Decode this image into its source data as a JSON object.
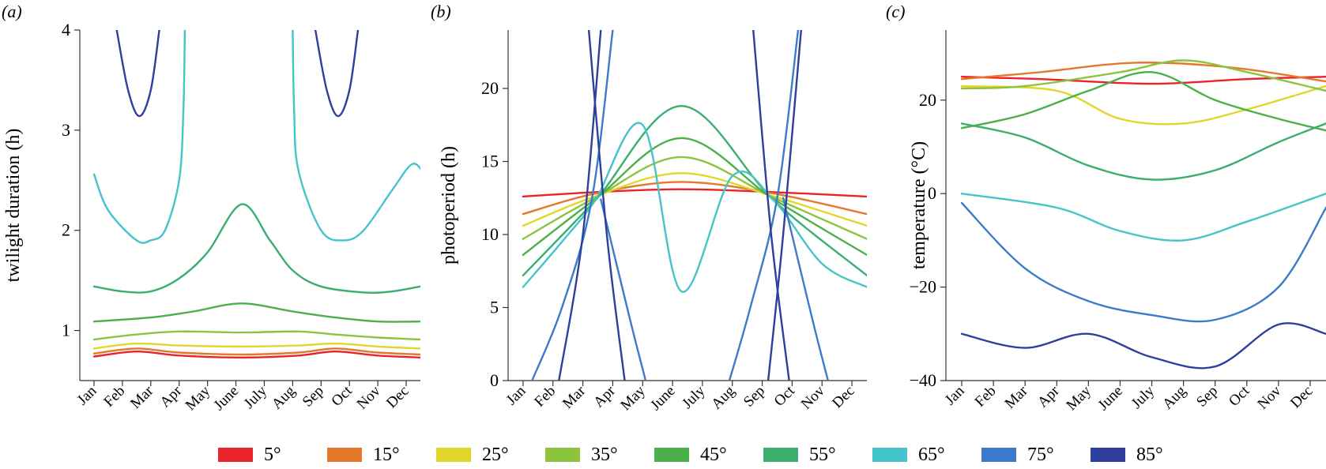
{
  "months": [
    "Jan",
    "Feb",
    "Mar",
    "Apr",
    "May",
    "June",
    "July",
    "Aug",
    "Sep",
    "Oct",
    "Nov",
    "Dec"
  ],
  "legend": {
    "labels": [
      "5°",
      "15°",
      "25°",
      "35°",
      "45°",
      "55°",
      "65°",
      "75°",
      "85°"
    ],
    "colors": [
      "#e8232a",
      "#e5782b",
      "#e3d62a",
      "#8cc43f",
      "#4bb04a",
      "#3aae6e",
      "#45c4c9",
      "#3a7cc9",
      "#2f3f9c"
    ]
  },
  "chart_data": [
    {
      "panel": "(a)",
      "type": "line",
      "title": "",
      "xlabel": "",
      "ylabel": "twilight duration (h)",
      "ylim": [
        0.5,
        4
      ],
      "yticks": [
        1,
        2,
        3,
        4
      ],
      "x_unit": "month index (0 = Jan)",
      "series": [
        {
          "name": "5°",
          "segments": [
            [
              [
                0,
                0.74
              ],
              [
                1.5,
                0.79
              ],
              [
                3,
                0.75
              ],
              [
                5.2,
                0.73
              ],
              [
                7.2,
                0.75
              ],
              [
                8.5,
                0.79
              ],
              [
                10,
                0.75
              ],
              [
                11.5,
                0.73
              ]
            ]
          ]
        },
        {
          "name": "15°",
          "segments": [
            [
              [
                0,
                0.77
              ],
              [
                1.5,
                0.82
              ],
              [
                3,
                0.78
              ],
              [
                5.2,
                0.76
              ],
              [
                7.2,
                0.78
              ],
              [
                8.5,
                0.82
              ],
              [
                10,
                0.78
              ],
              [
                11.5,
                0.76
              ]
            ]
          ]
        },
        {
          "name": "25°",
          "segments": [
            [
              [
                0,
                0.82
              ],
              [
                1.5,
                0.87
              ],
              [
                3,
                0.85
              ],
              [
                5.2,
                0.84
              ],
              [
                7.2,
                0.85
              ],
              [
                8.5,
                0.87
              ],
              [
                10,
                0.84
              ],
              [
                11.5,
                0.82
              ]
            ]
          ]
        },
        {
          "name": "35°",
          "segments": [
            [
              [
                0,
                0.91
              ],
              [
                1.5,
                0.96
              ],
              [
                3,
                0.99
              ],
              [
                5.2,
                0.98
              ],
              [
                7.2,
                0.99
              ],
              [
                8.5,
                0.96
              ],
              [
                10,
                0.93
              ],
              [
                11.5,
                0.91
              ]
            ]
          ]
        },
        {
          "name": "45°",
          "segments": [
            [
              [
                0,
                1.09
              ],
              [
                2,
                1.13
              ],
              [
                3.5,
                1.19
              ],
              [
                5.2,
                1.27
              ],
              [
                7,
                1.19
              ],
              [
                8.5,
                1.13
              ],
              [
                10,
                1.09
              ],
              [
                11.5,
                1.09
              ]
            ]
          ]
        },
        {
          "name": "55°",
          "segments": [
            [
              [
                0,
                1.44
              ],
              [
                1,
                1.39
              ],
              [
                2,
                1.39
              ],
              [
                3,
                1.52
              ],
              [
                4,
                1.78
              ],
              [
                5.2,
                2.26
              ],
              [
                6.2,
                1.9
              ],
              [
                7,
                1.6
              ],
              [
                8,
                1.44
              ],
              [
                9.5,
                1.38
              ],
              [
                10.5,
                1.39
              ],
              [
                11.5,
                1.44
              ]
            ]
          ]
        },
        {
          "name": "65°",
          "segments": [
            [
              [
                0,
                2.56
              ],
              [
                0.5,
                2.2
              ],
              [
                1.5,
                1.9
              ],
              [
                2,
                1.9
              ],
              [
                2.5,
                2.0
              ],
              [
                3,
                2.5
              ],
              [
                3.15,
                3.2
              ],
              [
                3.2,
                4.0
              ]
            ],
            [
              [
                7,
                4.0
              ],
              [
                7.05,
                3.2
              ],
              [
                7.2,
                2.6
              ],
              [
                8,
                2.0
              ],
              [
                8.8,
                1.9
              ],
              [
                9.5,
                2.0
              ],
              [
                10.5,
                2.4
              ],
              [
                11.2,
                2.66
              ],
              [
                11.6,
                2.58
              ]
            ]
          ]
        },
        {
          "name": "75°",
          "segments": []
        },
        {
          "name": "85°",
          "segments": [
            [
              [
                0.8,
                4.0
              ],
              [
                1.2,
                3.4
              ],
              [
                1.6,
                3.14
              ],
              [
                2,
                3.4
              ],
              [
                2.3,
                4.0
              ]
            ],
            [
              [
                7.8,
                4.0
              ],
              [
                8.2,
                3.4
              ],
              [
                8.6,
                3.14
              ],
              [
                9.0,
                3.4
              ],
              [
                9.3,
                4.0
              ]
            ]
          ]
        }
      ]
    },
    {
      "panel": "(b)",
      "type": "line",
      "title": "",
      "xlabel": "",
      "ylabel": "photoperiod (h)",
      "ylim": [
        0,
        24
      ],
      "yticks": [
        0,
        5,
        10,
        15,
        20
      ],
      "x_unit": "month index (0 = Jan)",
      "series": [
        {
          "name": "5°",
          "segments": [
            [
              [
                0,
                12.6
              ],
              [
                2.4,
                12.9
              ],
              [
                5.3,
                13.1
              ],
              [
                8.4,
                12.9
              ],
              [
                11.5,
                12.6
              ]
            ]
          ]
        },
        {
          "name": "15°",
          "segments": [
            [
              [
                0,
                11.4
              ],
              [
                2.4,
                12.8
              ],
              [
                5.3,
                13.6
              ],
              [
                8.4,
                12.8
              ],
              [
                11.5,
                11.4
              ]
            ]
          ]
        },
        {
          "name": "25°",
          "segments": [
            [
              [
                0,
                10.6
              ],
              [
                2.4,
                12.6
              ],
              [
                5.3,
                14.2
              ],
              [
                8.4,
                12.6
              ],
              [
                11.5,
                10.6
              ]
            ]
          ]
        },
        {
          "name": "35°",
          "segments": [
            [
              [
                0,
                9.7
              ],
              [
                2.4,
                12.5
              ],
              [
                5.3,
                15.3
              ],
              [
                8.4,
                12.5
              ],
              [
                11.5,
                9.7
              ]
            ]
          ]
        },
        {
          "name": "45°",
          "segments": [
            [
              [
                0,
                8.6
              ],
              [
                2.4,
                12.4
              ],
              [
                5.3,
                16.6
              ],
              [
                8.4,
                12.4
              ],
              [
                11.5,
                8.6
              ]
            ]
          ]
        },
        {
          "name": "55°",
          "segments": [
            [
              [
                0,
                7.2
              ],
              [
                2.4,
                12.3
              ],
              [
                5.3,
                18.8
              ],
              [
                8.4,
                12.3
              ],
              [
                11.5,
                7.2
              ]
            ]
          ]
        },
        {
          "name": "65°",
          "segments": [
            [
              [
                0,
                6.4
              ],
              [
                1.3,
                9.5
              ],
              [
                2.4,
                12.3
              ],
              [
                4,
                17.5
              ],
              [
                5.3,
                6.1
              ],
              [
                7,
                14
              ],
              [
                8.4,
                12.3
              ],
              [
                10,
                8
              ],
              [
                11.5,
                6.4
              ]
            ]
          ]
        },
        {
          "name": "75°",
          "segments": [
            [
              [
                0.3,
                0
              ],
              [
                1.3,
                5
              ],
              [
                2.3,
                12.4
              ],
              [
                3.0,
                24
              ]
            ],
            [
              [
                2.6,
                12.4
              ],
              [
                3.6,
                4
              ],
              [
                4.1,
                0
              ]
            ],
            [
              [
                6.9,
                0
              ],
              [
                7.6,
                5
              ],
              [
                8.5,
                12.5
              ],
              [
                9.2,
                24
              ]
            ],
            [
              [
                8.7,
                12.5
              ],
              [
                9.7,
                4
              ],
              [
                10.2,
                0
              ]
            ]
          ]
        },
        {
          "name": "85°",
          "segments": [
            [
              [
                1.2,
                0
              ],
              [
                2.0,
                10
              ],
              [
                2.6,
                24
              ]
            ],
            [
              [
                2.2,
                24
              ],
              [
                2.8,
                10
              ],
              [
                3.4,
                0
              ]
            ],
            [
              [
                7.7,
                24
              ],
              [
                8.3,
                10
              ],
              [
                8.9,
                0
              ]
            ],
            [
              [
                8.2,
                0
              ],
              [
                8.7,
                10
              ],
              [
                9.3,
                24
              ]
            ]
          ]
        }
      ]
    },
    {
      "panel": "(c)",
      "type": "line",
      "title": "",
      "xlabel": "",
      "ylabel": "temperature (°C)",
      "ylim": [
        -40,
        35
      ],
      "yticks": [
        -40,
        -20,
        0,
        20
      ],
      "x_unit": "month index (0 = Jan)",
      "series": [
        {
          "name": "5°",
          "segments": [
            [
              [
                0,
                25
              ],
              [
                2.5,
                24.5
              ],
              [
                6,
                23.5
              ],
              [
                9,
                24.5
              ],
              [
                11.5,
                25
              ]
            ]
          ]
        },
        {
          "name": "15°",
          "segments": [
            [
              [
                0,
                24.5
              ],
              [
                2.5,
                26
              ],
              [
                5.5,
                28
              ],
              [
                8.5,
                27
              ],
              [
                11.5,
                24
              ]
            ]
          ]
        },
        {
          "name": "25°",
          "segments": [
            [
              [
                0,
                23
              ],
              [
                3,
                22
              ],
              [
                5,
                16
              ],
              [
                7,
                15
              ],
              [
                9,
                18
              ],
              [
                11.5,
                23
              ]
            ]
          ]
        },
        {
          "name": "35°",
          "segments": [
            [
              [
                0,
                22.5
              ],
              [
                2,
                23
              ],
              [
                5,
                26
              ],
              [
                7,
                28.5
              ],
              [
                9,
                26
              ],
              [
                11.5,
                22
              ]
            ]
          ]
        },
        {
          "name": "45°",
          "segments": [
            [
              [
                0,
                14
              ],
              [
                2,
                17
              ],
              [
                4,
                22
              ],
              [
                6,
                26
              ],
              [
                8,
                20
              ],
              [
                10,
                16
              ],
              [
                11.5,
                13.5
              ]
            ]
          ]
        },
        {
          "name": "55°",
          "segments": [
            [
              [
                0,
                15
              ],
              [
                2,
                12
              ],
              [
                4,
                6
              ],
              [
                6,
                3
              ],
              [
                8,
                5
              ],
              [
                10,
                11
              ],
              [
                11.5,
                15
              ]
            ]
          ]
        },
        {
          "name": "65°",
          "segments": [
            [
              [
                0,
                0
              ],
              [
                3,
                -3
              ],
              [
                5,
                -8
              ],
              [
                7,
                -10
              ],
              [
                9,
                -6
              ],
              [
                11.5,
                0
              ]
            ]
          ]
        },
        {
          "name": "75°",
          "segments": [
            [
              [
                0,
                -2
              ],
              [
                2,
                -16
              ],
              [
                4,
                -23
              ],
              [
                6,
                -26
              ],
              [
                8,
                -27
              ],
              [
                10,
                -20
              ],
              [
                11.5,
                -3
              ]
            ]
          ]
        },
        {
          "name": "85°",
          "segments": [
            [
              [
                0,
                -30
              ],
              [
                2,
                -33
              ],
              [
                4,
                -30
              ],
              [
                6,
                -35
              ],
              [
                8,
                -37
              ],
              [
                10,
                -28
              ],
              [
                11.5,
                -30
              ]
            ]
          ]
        }
      ]
    }
  ]
}
